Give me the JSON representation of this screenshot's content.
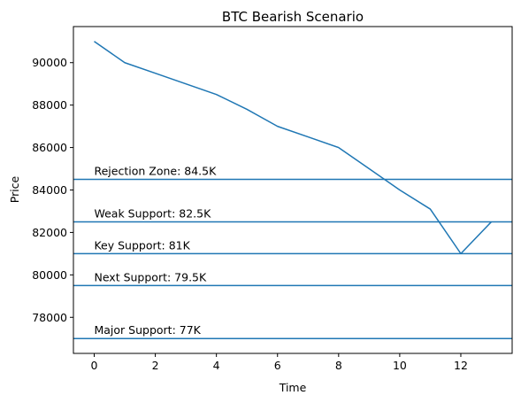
{
  "chart_data": {
    "type": "line",
    "title": "BTC Bearish Scenario",
    "xlabel": "Time",
    "ylabel": "Price",
    "xlim": [
      -0.68,
      13.68
    ],
    "ylim": [
      76300,
      91700
    ],
    "xticks": [
      0,
      2,
      4,
      6,
      8,
      10,
      12
    ],
    "yticks": [
      78000,
      80000,
      82000,
      84000,
      86000,
      88000,
      90000
    ],
    "grid": false,
    "line_color": "#1f77b4",
    "series": [
      {
        "x": [
          0,
          1,
          2,
          3,
          4,
          5,
          6,
          7,
          8,
          9,
          10,
          11,
          12,
          13
        ],
        "y": [
          91000,
          90000,
          89500,
          89000,
          88500,
          87800,
          87000,
          86500,
          86000,
          85000,
          84000,
          83100,
          81000,
          82500
        ]
      }
    ],
    "hlines": [
      {
        "y": 84500,
        "label": "Rejection Zone: 84.5K"
      },
      {
        "y": 82500,
        "label": "Weak Support: 82.5K"
      },
      {
        "y": 81000,
        "label": "Key Support: 81K"
      },
      {
        "y": 79500,
        "label": "Next Support: 79.5K"
      },
      {
        "y": 77000,
        "label": "Major Support: 77K"
      }
    ],
    "hline_label_x": 0
  }
}
